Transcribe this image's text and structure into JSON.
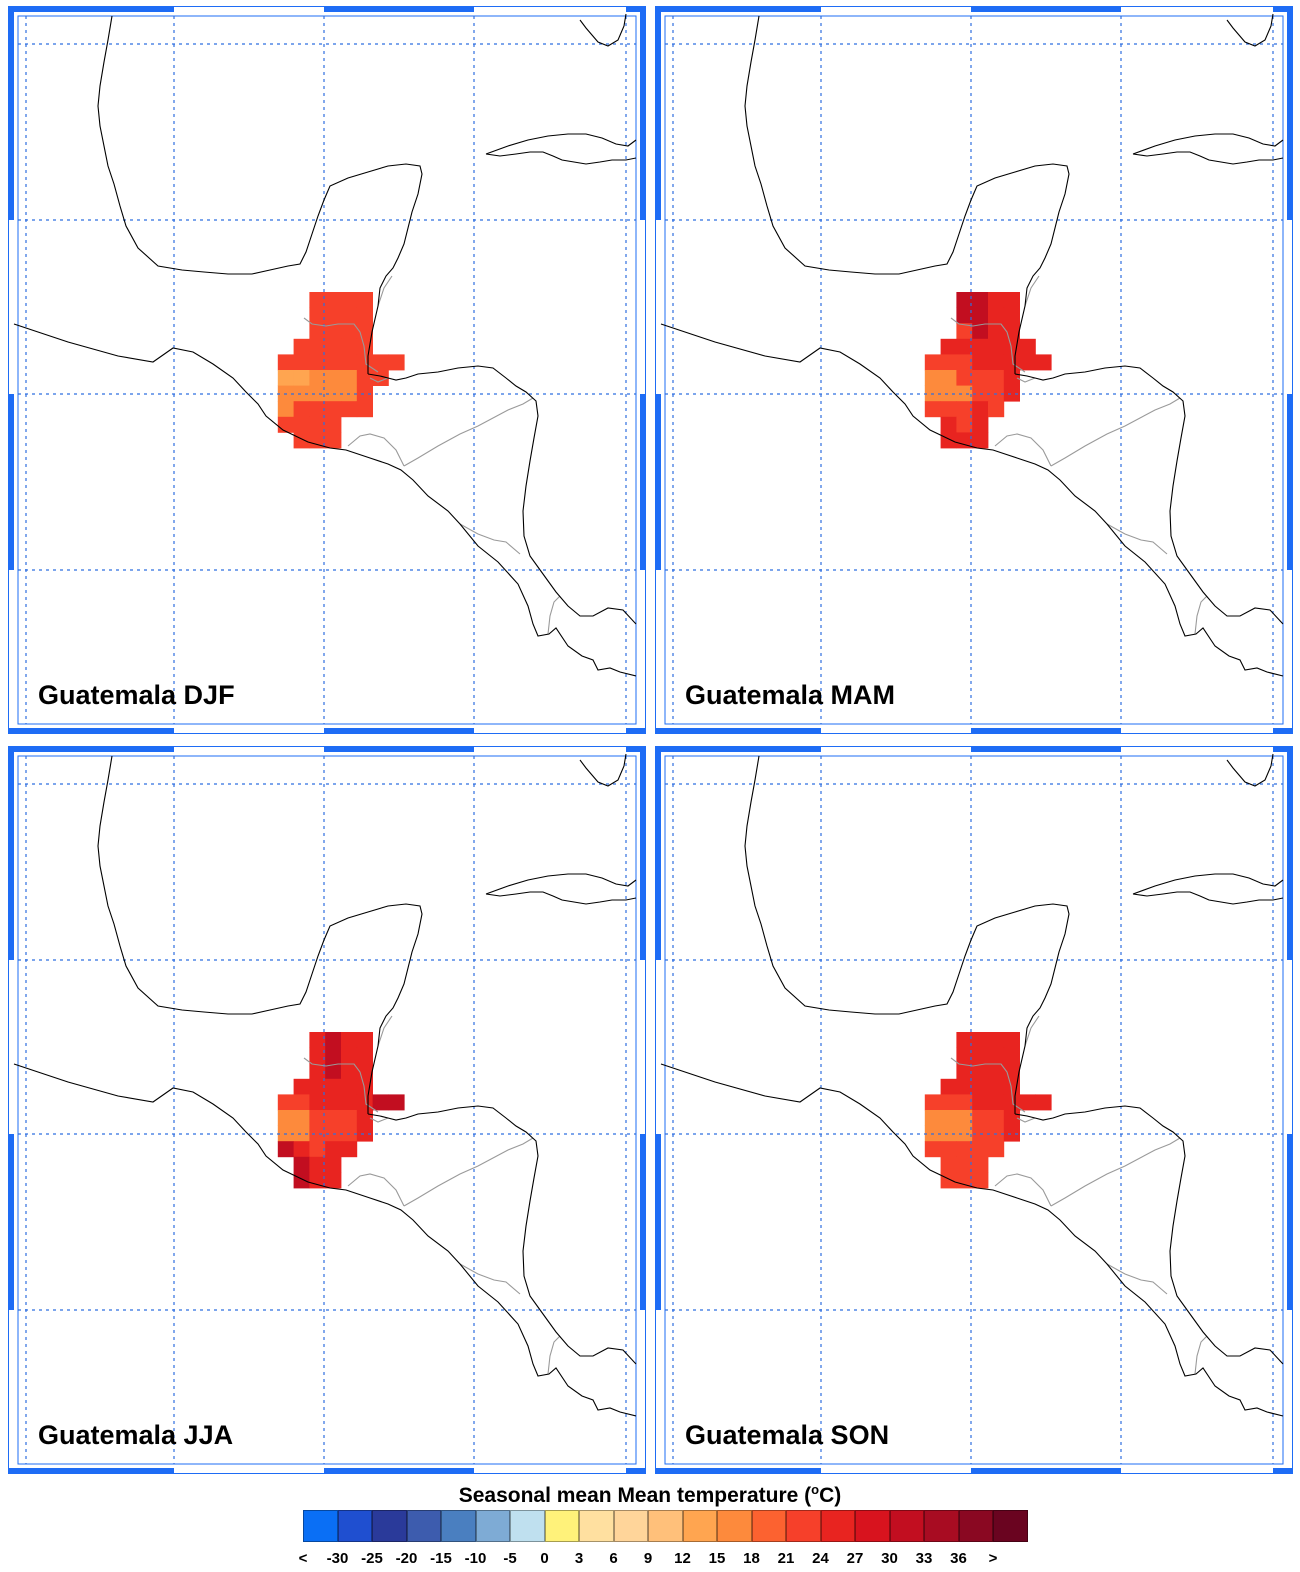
{
  "panels": [
    {
      "label": "Guatemala DJF"
    },
    {
      "label": "Guatemala MAM"
    },
    {
      "label": "Guatemala JJA"
    },
    {
      "label": "Guatemala SON"
    }
  ],
  "legend": {
    "title_text": "Seasonal mean Mean temperature (",
    "title_unit_sup": "o",
    "title_unit_tail": "C)",
    "tick_labels": [
      "<",
      "-30",
      "-25",
      "-20",
      "-15",
      "-10",
      "-5",
      "0",
      "3",
      "6",
      "9",
      "12",
      "15",
      "18",
      "21",
      "24",
      "27",
      "30",
      "33",
      "36",
      ">"
    ],
    "colors": [
      "#0a6ff5",
      "#1f4fd0",
      "#2a3a9a",
      "#3d5cae",
      "#4a7fc0",
      "#7eabd5",
      "#bfe0ef",
      "#fff27a",
      "#ffe0a0",
      "#ffd59a",
      "#ffc07a",
      "#ffa550",
      "#fd8a3c",
      "#fc6230",
      "#f6402a",
      "#e82420",
      "#d8131e",
      "#c20e20",
      "#a80c22",
      "#8a0822",
      "#6a0420"
    ]
  },
  "colors": {
    "grid_line": "#2f6fe0",
    "frame_accent": "#1e6cf5",
    "frame_line": "#1e6cf5",
    "coastline": "#000000",
    "borders": "#9a9a9a"
  }
}
